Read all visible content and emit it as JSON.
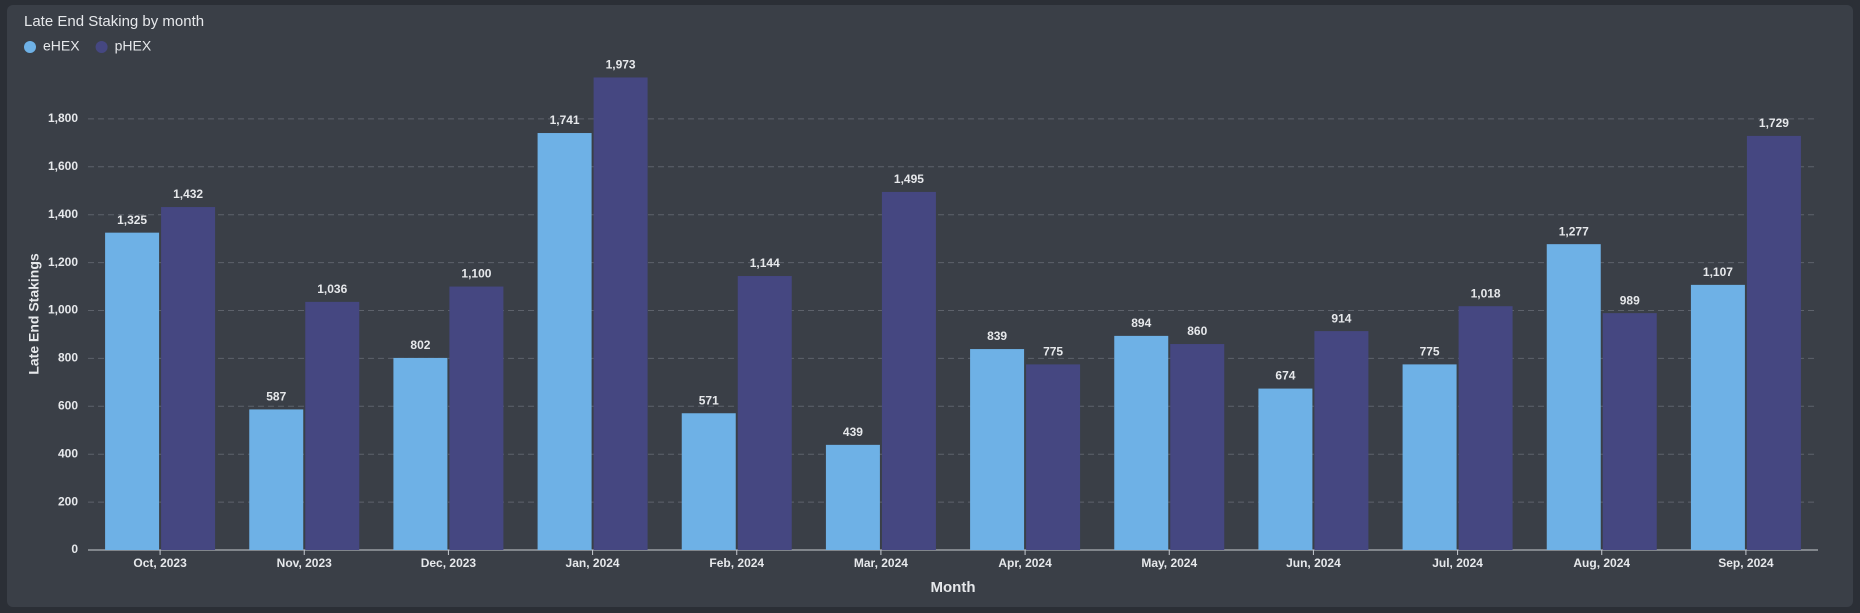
{
  "chart_data": {
    "type": "bar",
    "title": "Late End Staking by month",
    "x_label": "Month",
    "y_label": "Late End Stakings",
    "categories": [
      "Oct, 2023",
      "Nov, 2023",
      "Dec, 2023",
      "Jan, 2024",
      "Feb, 2024",
      "Mar, 2024",
      "Apr, 2024",
      "May, 2024",
      "Jun, 2024",
      "Jul, 2024",
      "Aug, 2024",
      "Sep, 2024"
    ],
    "series": [
      {
        "name": "eHEX",
        "color": "#6eb1e6",
        "values": [
          1325,
          587,
          802,
          1741,
          571,
          439,
          839,
          894,
          674,
          775,
          1277,
          1107
        ],
        "value_labels": [
          "1,325",
          "587",
          "802",
          "1,741",
          "571",
          "439",
          "839",
          "894",
          "674",
          "775",
          "1,277",
          "1,107"
        ]
      },
      {
        "name": "pHEX",
        "color": "#454781",
        "values": [
          1432,
          1036,
          1100,
          1973,
          1144,
          1495,
          775,
          860,
          914,
          1018,
          989,
          1729
        ],
        "value_labels": [
          "1,432",
          "1,036",
          "1,100",
          "1,973",
          "1,144",
          "1,495",
          "775",
          "860",
          "914",
          "1,018",
          "989",
          "1,729"
        ]
      }
    ],
    "ylim": [
      0,
      2000
    ],
    "yticks": [
      0,
      200,
      400,
      600,
      800,
      {
        "value": 1000,
        "label": "1,000"
      },
      {
        "value": 1200,
        "label": "1,200"
      },
      {
        "value": 1400,
        "label": "1,400"
      },
      {
        "value": 1600,
        "label": "1,600"
      },
      {
        "value": 1800,
        "label": "1,800"
      }
    ],
    "grid": true,
    "legend": "top-left"
  }
}
